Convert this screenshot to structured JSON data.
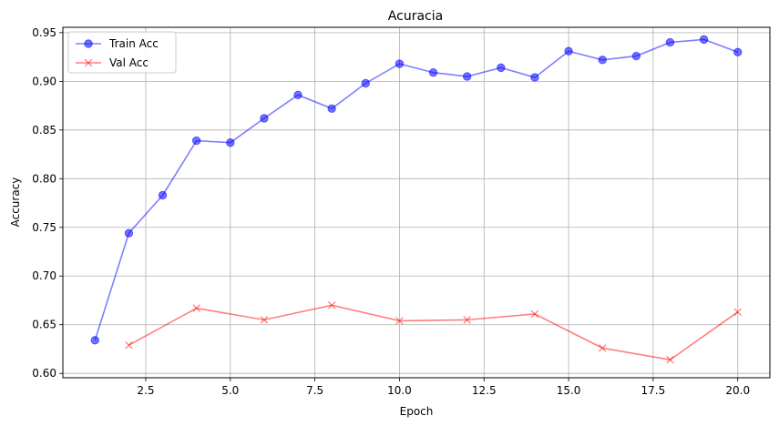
{
  "chart_data": {
    "type": "line",
    "title": "Acuracia",
    "xlabel": "Epoch",
    "ylabel": "Accuracy",
    "xlim": [
      0.05,
      20.95
    ],
    "ylim": [
      0.5955,
      0.9555
    ],
    "xticks": [
      "2.5",
      "5.0",
      "7.5",
      "10.0",
      "12.5",
      "15.0",
      "17.5",
      "20.0"
    ],
    "yticks": [
      "0.60",
      "0.65",
      "0.70",
      "0.75",
      "0.80",
      "0.85",
      "0.90",
      "0.95"
    ],
    "grid": true,
    "legend_position": "top-left",
    "series": [
      {
        "name": "Train Acc",
        "color": "#0000ff",
        "marker": "circle",
        "x": [
          1,
          2,
          3,
          4,
          5,
          6,
          7,
          8,
          9,
          10,
          11,
          12,
          13,
          14,
          15,
          16,
          17,
          18,
          19,
          20
        ],
        "y": [
          0.634,
          0.744,
          0.783,
          0.839,
          0.837,
          0.862,
          0.886,
          0.872,
          0.898,
          0.918,
          0.909,
          0.905,
          0.914,
          0.904,
          0.931,
          0.922,
          0.926,
          0.94,
          0.943,
          0.93
        ]
      },
      {
        "name": "Val Acc",
        "color": "#ff0000",
        "marker": "x",
        "x": [
          2,
          4,
          6,
          8,
          10,
          12,
          14,
          16,
          18,
          20
        ],
        "y": [
          0.629,
          0.667,
          0.655,
          0.67,
          0.654,
          0.655,
          0.661,
          0.626,
          0.614,
          0.663
        ]
      }
    ]
  }
}
